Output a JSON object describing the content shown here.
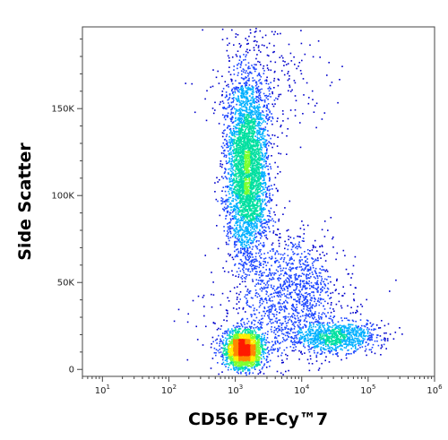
{
  "chart_data": {
    "type": "scatter",
    "subtype": "flow-cytometry density dot plot",
    "xlabel": "CD56 PE-Cy™7",
    "ylabel": "Side Scatter",
    "x_scale": "log",
    "xlim": [
      5,
      1000000
    ],
    "ylim": [
      -4000,
      197000
    ],
    "x_ticks": [
      {
        "value": 10,
        "base": "10",
        "exp": "1"
      },
      {
        "value": 100,
        "base": "10",
        "exp": "2"
      },
      {
        "value": 1000,
        "base": "10",
        "exp": "3"
      },
      {
        "value": 10000,
        "base": "10",
        "exp": "4"
      },
      {
        "value": 100000,
        "base": "10",
        "exp": "5"
      },
      {
        "value": 1000000,
        "base": "10",
        "exp": "6"
      }
    ],
    "y_ticks": [
      {
        "value": 0,
        "label": "0"
      },
      {
        "value": 50000,
        "label": "50K"
      },
      {
        "value": 100000,
        "label": "100K"
      },
      {
        "value": 150000,
        "label": "150K"
      }
    ],
    "grid": false,
    "legend": "none",
    "density_colormap": [
      "#0000cc",
      "#1a44ff",
      "#00b0ff",
      "#00e0a0",
      "#7cff30",
      "#ffee00",
      "#ff8800",
      "#ff1a00"
    ],
    "populations": [
      {
        "x_center": 1500,
        "y_center": 115000,
        "x_spread_decades": 0.16,
        "y_sd": 28000,
        "events": 3800
      },
      {
        "x_center": 1300,
        "y_center": 12000,
        "x_spread_decades": 0.14,
        "y_sd": 5500,
        "events": 2400
      },
      {
        "x_center": 30000,
        "y_center": 19000,
        "x_spread_decades": 0.33,
        "y_sd": 4500,
        "events": 900
      },
      {
        "x_center": 8000,
        "y_center": 50000,
        "x_spread_decades": 0.32,
        "y_sd": 14000,
        "events": 800
      },
      {
        "x_center": 5000,
        "y_center": 25000,
        "x_spread_decades": 0.6,
        "y_sd": 14000,
        "events": 500
      },
      {
        "x_center": 3000,
        "y_center": 170000,
        "x_spread_decades": 0.5,
        "y_sd": 20000,
        "events": 250
      }
    ]
  }
}
